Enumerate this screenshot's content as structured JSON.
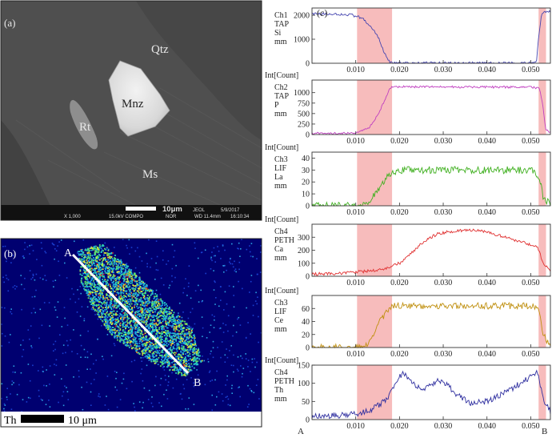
{
  "panels": {
    "a": {
      "label": "(a)",
      "minerals": [
        "Qtz",
        "Mnz",
        "Rt",
        "Ms"
      ],
      "scalebar": "10μm",
      "info": {
        "mag": "X 1,000",
        "beam": "15.0kV COMPO",
        "mode": "NOR",
        "brand": "JEOL",
        "wd": "WD 11.4mm",
        "date": "5/9/2017",
        "time": "16:10:34"
      }
    },
    "b": {
      "label": "(b)",
      "element": "Th",
      "scalebar": "10 μm",
      "start": "A",
      "end": "B"
    },
    "c": {
      "label": "(c)",
      "start": "A",
      "end": "B"
    }
  },
  "chart_data": {
    "type": "line",
    "title": "(c)",
    "x": {
      "range": [
        0,
        0.0545
      ],
      "ticks": [
        0.01,
        0.02,
        0.03,
        0.04,
        0.05
      ],
      "tick_labels": [
        "0.010",
        "0.020",
        "0.030",
        "0.040",
        "0.050"
      ],
      "start_label": "A",
      "end_label": "B"
    },
    "shaded_regions": [
      [
        0.0103,
        0.0183
      ],
      [
        0.0518,
        0.0535
      ]
    ],
    "series": [
      {
        "name": "Si",
        "ylabel": [
          "Ch1",
          "TAP",
          "Si",
          "mm"
        ],
        "unit_label": "",
        "color": "#4545b0",
        "ylim": [
          0,
          2300
        ],
        "yticks": [
          0,
          1000,
          2000
        ],
        "noise": 50,
        "points": [
          [
            0,
            2050
          ],
          [
            0.005,
            2050
          ],
          [
            0.009,
            2010
          ],
          [
            0.0115,
            1880
          ],
          [
            0.013,
            1600
          ],
          [
            0.015,
            1150
          ],
          [
            0.0165,
            450
          ],
          [
            0.0178,
            40
          ],
          [
            0.0185,
            10
          ],
          [
            0.05,
            10
          ],
          [
            0.0513,
            30
          ],
          [
            0.0518,
            1100
          ],
          [
            0.0524,
            1950
          ],
          [
            0.053,
            2150
          ],
          [
            0.0545,
            2150
          ]
        ]
      },
      {
        "name": "P",
        "ylabel": [
          "Ch2",
          "TAP",
          "P",
          "mm"
        ],
        "unit_label": "Int[Count]",
        "color": "#c040c0",
        "ylim": [
          0,
          1300
        ],
        "yticks": [
          0,
          250,
          500,
          750,
          1000
        ],
        "noise": 25,
        "points": [
          [
            0,
            30
          ],
          [
            0.01,
            30
          ],
          [
            0.013,
            150
          ],
          [
            0.015,
            450
          ],
          [
            0.0165,
            800
          ],
          [
            0.0178,
            1100
          ],
          [
            0.0185,
            1140
          ],
          [
            0.05,
            1130
          ],
          [
            0.052,
            1100
          ],
          [
            0.0528,
            700
          ],
          [
            0.0534,
            120
          ],
          [
            0.0545,
            60
          ]
        ]
      },
      {
        "name": "La",
        "ylabel": [
          "Ch3",
          "LIF",
          "La",
          "mm"
        ],
        "unit_label": "Int[Count]",
        "color": "#40b020",
        "ylim": [
          0,
          45
        ],
        "yticks": [
          0,
          10,
          20,
          30,
          40
        ],
        "noise": 3,
        "points": [
          [
            0,
            0
          ],
          [
            0.012,
            0
          ],
          [
            0.0135,
            5
          ],
          [
            0.015,
            14
          ],
          [
            0.017,
            24
          ],
          [
            0.0185,
            28
          ],
          [
            0.02,
            30
          ],
          [
            0.05,
            30
          ],
          [
            0.052,
            24
          ],
          [
            0.0528,
            8
          ],
          [
            0.0545,
            1
          ]
        ]
      },
      {
        "name": "Ca",
        "ylabel": [
          "Ch4",
          "PETH",
          "Ca",
          "mm"
        ],
        "unit_label": "Int[Count]",
        "color": "#e03030",
        "ylim": [
          0,
          400
        ],
        "yticks": [
          0,
          100,
          200,
          300
        ],
        "noise": 12,
        "points": [
          [
            0,
            15
          ],
          [
            0.008,
            25
          ],
          [
            0.016,
            50
          ],
          [
            0.02,
            100
          ],
          [
            0.023,
            190
          ],
          [
            0.026,
            280
          ],
          [
            0.029,
            330
          ],
          [
            0.032,
            345
          ],
          [
            0.036,
            355
          ],
          [
            0.04,
            340
          ],
          [
            0.044,
            300
          ],
          [
            0.048,
            265
          ],
          [
            0.0515,
            225
          ],
          [
            0.0528,
            110
          ],
          [
            0.0545,
            40
          ]
        ]
      },
      {
        "name": "Ce",
        "ylabel": [
          "Ch3",
          "LIF",
          "Ce",
          "mm"
        ],
        "unit_label": "Int[Count]",
        "color": "#c09010",
        "ylim": [
          0,
          80
        ],
        "yticks": [
          0,
          20,
          40,
          60
        ],
        "noise": 5,
        "points": [
          [
            0,
            0
          ],
          [
            0.012,
            0
          ],
          [
            0.0135,
            12
          ],
          [
            0.015,
            35
          ],
          [
            0.0165,
            50
          ],
          [
            0.0178,
            63
          ],
          [
            0.019,
            64
          ],
          [
            0.05,
            64
          ],
          [
            0.052,
            58
          ],
          [
            0.0528,
            20
          ],
          [
            0.0545,
            2
          ]
        ]
      },
      {
        "name": "Th",
        "ylabel": [
          "Ch4",
          "PETH",
          "Th",
          "mm"
        ],
        "unit_label": "Int[Count]",
        "color": "#3030a0",
        "ylim": [
          0,
          150
        ],
        "yticks": [
          0,
          50,
          100,
          150
        ],
        "noise": 8,
        "points": [
          [
            0,
            10
          ],
          [
            0.008,
            12
          ],
          [
            0.011,
            18
          ],
          [
            0.014,
            30
          ],
          [
            0.017,
            55
          ],
          [
            0.0195,
            110
          ],
          [
            0.021,
            130
          ],
          [
            0.023,
            100
          ],
          [
            0.025,
            80
          ],
          [
            0.027,
            95
          ],
          [
            0.029,
            108
          ],
          [
            0.031,
            95
          ],
          [
            0.033,
            70
          ],
          [
            0.036,
            45
          ],
          [
            0.04,
            50
          ],
          [
            0.045,
            80
          ],
          [
            0.049,
            110
          ],
          [
            0.0515,
            130
          ],
          [
            0.0528,
            60
          ],
          [
            0.0545,
            20
          ]
        ]
      }
    ]
  }
}
